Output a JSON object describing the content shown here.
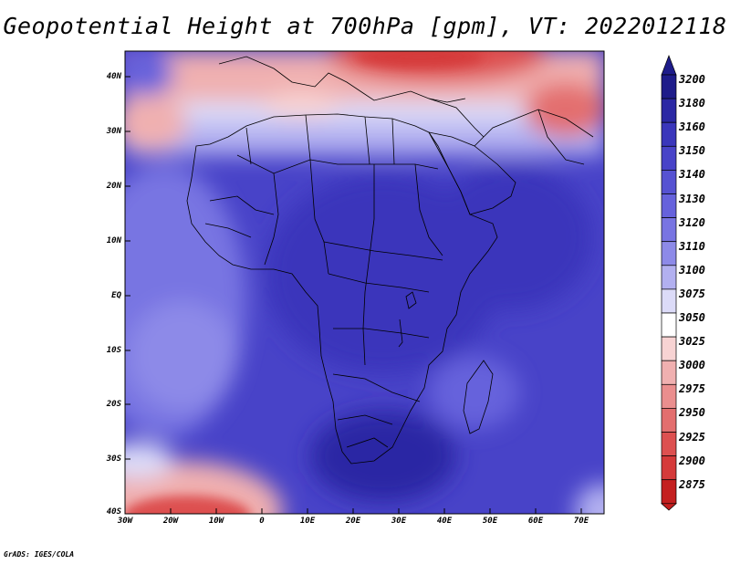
{
  "title": "Geopotential Height at 700hPa [gpm], VT: 2022012118",
  "footer": "GrADS: IGES/COLA",
  "lat_labels": [
    "40N",
    "30N",
    "20N",
    "10N",
    "EQ",
    "10S",
    "20S",
    "30S",
    "40S"
  ],
  "lon_labels": [
    "30W",
    "20W",
    "10W",
    "0",
    "10E",
    "20E",
    "30E",
    "40E",
    "50E",
    "60E",
    "70E"
  ],
  "colorbar": {
    "values": [
      "3200",
      "3180",
      "3160",
      "3150",
      "3140",
      "3130",
      "3120",
      "3110",
      "3100",
      "3075",
      "3050",
      "3025",
      "3000",
      "2975",
      "2950",
      "2925",
      "2900",
      "2875"
    ],
    "colors": [
      "#1e1c8a",
      "#2b28a4",
      "#3a36bb",
      "#4843c8",
      "#5652d2",
      "#6662dc",
      "#7874e2",
      "#8d8ae8",
      "#b2b0f0",
      "#dcdbf8",
      "#ffffff",
      "#f7d3d3",
      "#f0b0b0",
      "#ea8e8e",
      "#e36e6e",
      "#dd5050",
      "#d53a3a",
      "#c42020"
    ]
  },
  "map": {
    "projection": "latlon",
    "lon_range": [
      -30,
      75
    ],
    "lat_range": [
      -40,
      45
    ],
    "field": "geopotential height 700hPa"
  }
}
